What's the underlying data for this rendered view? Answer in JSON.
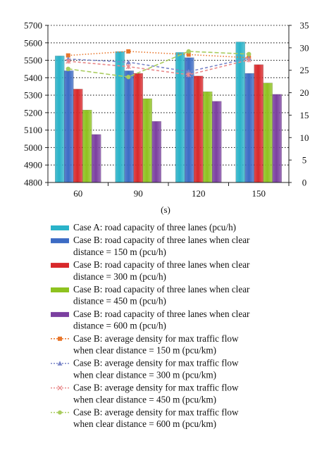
{
  "chart_data": {
    "type": "bar",
    "categories": [
      "60",
      "90",
      "120",
      "150"
    ],
    "xlabel": "(s)",
    "ylim_left": [
      4800,
      5700
    ],
    "yticks_left": [
      "4800",
      "4900",
      "5000",
      "5100",
      "5200",
      "5300",
      "5400",
      "5500",
      "5600",
      "5700"
    ],
    "ylim_right": [
      0,
      35
    ],
    "yticks_right": [
      "0",
      "5",
      "10",
      "15",
      "20",
      "25",
      "30",
      "35"
    ],
    "grid": "horizontal-dotted",
    "bar_series": [
      {
        "name": "Case A: road capacity of three lanes (pcu/h)",
        "color": "#2ab3c9",
        "values": [
          5525,
          5550,
          5545,
          5605
        ]
      },
      {
        "name": "Case B: road capacity of three lanes when clear distance = 150 m (pcu/h)",
        "color": "#3c6bc4",
        "values": [
          5440,
          5440,
          5515,
          5425
        ]
      },
      {
        "name": "Case B: road capacity of three lanes when clear distance = 300 m (pcu/h)",
        "color": "#d8282b",
        "values": [
          5335,
          5425,
          5410,
          5475
        ]
      },
      {
        "name": "Case B: road capacity of three lanes when clear distance = 450 m (pcu/h)",
        "color": "#8ec21f",
        "values": [
          5215,
          5280,
          5320,
          5370
        ]
      },
      {
        "name": "Case B: road capacity of three lanes when clear distance = 600 m (pcu/h)",
        "color": "#7b3fa0",
        "values": [
          5075,
          5150,
          5265,
          5305
        ]
      }
    ],
    "line_series": [
      {
        "name": "Case B: average density for max traffic flow when clear distance = 150 m (pcu/km)",
        "color": "#e8762b",
        "marker": "square",
        "values": [
          28.3,
          29.2,
          28.5,
          27.8
        ]
      },
      {
        "name": "Case B: average density for max traffic flow when clear distance = 300 m (pcu/km)",
        "color": "#7a86c8",
        "marker": "triangle",
        "values": [
          27.5,
          26.8,
          24.7,
          27.7
        ]
      },
      {
        "name": "Case B: average density for max traffic flow when clear distance = 450 m (pcu/km)",
        "color": "#e9898a",
        "marker": "cross",
        "values": [
          27.0,
          25.8,
          24.0,
          27.3
        ]
      },
      {
        "name": "Case B: average density for max traffic flow when clear distance = 600 m (pcu/km)",
        "color": "#a9cc5e",
        "marker": "circle",
        "values": [
          25.3,
          23.5,
          29.2,
          28.6
        ]
      }
    ],
    "legend": {
      "placement": "bottom",
      "entries": [
        {
          "lines": [
            "Case A: road capacity of three lanes (pcu/h)"
          ]
        },
        {
          "lines": [
            "Case B: road capacity of three lanes when clear",
            "distance = 150 m (pcu/h)"
          ]
        },
        {
          "lines": [
            "Case B: road capacity of three lanes when clear",
            "distance = 300 m (pcu/h)"
          ]
        },
        {
          "lines": [
            "Case B: road capacity of three lanes when clear",
            "distance = 450 m (pcu/h)"
          ]
        },
        {
          "lines": [
            "Case B: road capacity of three lanes when clear",
            "distance = 600 m (pcu/h)"
          ]
        },
        {
          "lines": [
            "Case B: average density for max traffic flow",
            "when clear distance = 150 m (pcu/km)"
          ]
        },
        {
          "lines": [
            "Case B: average density for max traffic flow",
            "when clear distance = 300 m (pcu/km)"
          ]
        },
        {
          "lines": [
            "Case B: average density for max traffic flow",
            "when clear distance = 450 m (pcu/km)"
          ]
        },
        {
          "lines": [
            "Case B: average density for max traffic flow",
            "when clear distance = 600 m (pcu/km)"
          ]
        }
      ]
    }
  }
}
